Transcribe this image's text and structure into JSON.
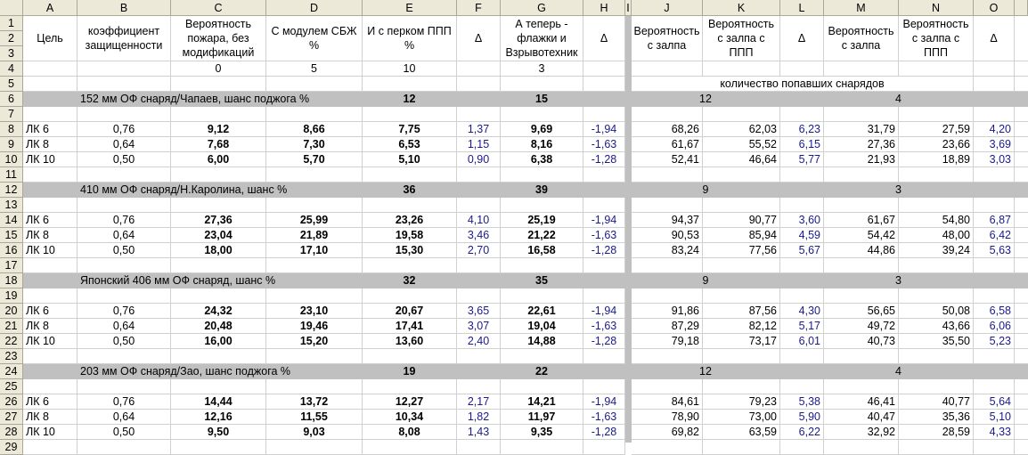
{
  "columns": [
    "A",
    "B",
    "C",
    "D",
    "E",
    "F",
    "G",
    "H",
    "I",
    "J",
    "K",
    "L",
    "M",
    "N",
    "O"
  ],
  "headers": {
    "A": "Цель",
    "B": "коэффициент защищенности",
    "C": "Вероятность пожара, без модификаций",
    "D": "С модулем СБЖ %",
    "E": "И с перком ППП %",
    "F": "Δ",
    "G": "А теперь - флажки и Взрывотехник",
    "H": "Δ",
    "J": "Вероятность с залпа",
    "K": "Вероятность с залпа с ППП",
    "L": "Δ",
    "M": "Вероятность с залпа",
    "N": "Вероятность с залпа с ППП",
    "O": "Δ"
  },
  "row4": {
    "C": "0",
    "D": "5",
    "E": "10",
    "G": "3"
  },
  "row5": {
    "label": "количество попавших снарядов"
  },
  "colors": {
    "group_band": "#c0c0c0",
    "delta_text": "#1a1a8c",
    "header_bg": "#ece9d8"
  },
  "groups": [
    {
      "title": "152 мм ОФ снаряд/Чапаев, шанс поджога %",
      "e": "12",
      "g": "15",
      "jk": "12",
      "mn": "4",
      "rows": [
        {
          "A": "ЛК 6",
          "B": "0,76",
          "C": "9,12",
          "D": "8,66",
          "E": "7,75",
          "F": "1,37",
          "G": "9,69",
          "H": "-1,94",
          "J": "68,26",
          "K": "62,03",
          "L": "6,23",
          "M": "31,79",
          "N": "27,59",
          "O": "4,20"
        },
        {
          "A": "ЛК 8",
          "B": "0,64",
          "C": "7,68",
          "D": "7,30",
          "E": "6,53",
          "F": "1,15",
          "G": "8,16",
          "H": "-1,63",
          "J": "61,67",
          "K": "55,52",
          "L": "6,15",
          "M": "27,36",
          "N": "23,66",
          "O": "3,69"
        },
        {
          "A": "ЛК 10",
          "B": "0,50",
          "C": "6,00",
          "D": "5,70",
          "E": "5,10",
          "F": "0,90",
          "G": "6,38",
          "H": "-1,28",
          "J": "52,41",
          "K": "46,64",
          "L": "5,77",
          "M": "21,93",
          "N": "18,89",
          "O": "3,03"
        }
      ]
    },
    {
      "title": "410 мм ОФ снаряд/Н.Каролина, шанс %",
      "e": "36",
      "g": "39",
      "jk": "9",
      "mn": "3",
      "rows": [
        {
          "A": "ЛК 6",
          "B": "0,76",
          "C": "27,36",
          "D": "25,99",
          "E": "23,26",
          "F": "4,10",
          "G": "25,19",
          "H": "-1,94",
          "J": "94,37",
          "K": "90,77",
          "L": "3,60",
          "M": "61,67",
          "N": "54,80",
          "O": "6,87"
        },
        {
          "A": "ЛК 8",
          "B": "0,64",
          "C": "23,04",
          "D": "21,89",
          "E": "19,58",
          "F": "3,46",
          "G": "21,22",
          "H": "-1,63",
          "J": "90,53",
          "K": "85,94",
          "L": "4,59",
          "M": "54,42",
          "N": "48,00",
          "O": "6,42"
        },
        {
          "A": "ЛК 10",
          "B": "0,50",
          "C": "18,00",
          "D": "17,10",
          "E": "15,30",
          "F": "2,70",
          "G": "16,58",
          "H": "-1,28",
          "J": "83,24",
          "K": "77,56",
          "L": "5,67",
          "M": "44,86",
          "N": "39,24",
          "O": "5,63"
        }
      ]
    },
    {
      "title": "Японский 406 мм ОФ снаряд, шанс %",
      "e": "32",
      "g": "35",
      "jk": "9",
      "mn": "3",
      "rows": [
        {
          "A": "ЛК 6",
          "B": "0,76",
          "C": "24,32",
          "D": "23,10",
          "E": "20,67",
          "F": "3,65",
          "G": "22,61",
          "H": "-1,94",
          "J": "91,86",
          "K": "87,56",
          "L": "4,30",
          "M": "56,65",
          "N": "50,08",
          "O": "6,58"
        },
        {
          "A": "ЛК 8",
          "B": "0,64",
          "C": "20,48",
          "D": "19,46",
          "E": "17,41",
          "F": "3,07",
          "G": "19,04",
          "H": "-1,63",
          "J": "87,29",
          "K": "82,12",
          "L": "5,17",
          "M": "49,72",
          "N": "43,66",
          "O": "6,06"
        },
        {
          "A": "ЛК 10",
          "B": "0,50",
          "C": "16,00",
          "D": "15,20",
          "E": "13,60",
          "F": "2,40",
          "G": "14,88",
          "H": "-1,28",
          "J": "79,18",
          "K": "73,17",
          "L": "6,01",
          "M": "40,73",
          "N": "35,50",
          "O": "5,23"
        }
      ]
    },
    {
      "title": "203 мм ОФ снаряд/Зао, шанс поджога %",
      "e": "19",
      "g": "22",
      "jk": "12",
      "mn": "4",
      "rows": [
        {
          "A": "ЛК 6",
          "B": "0,76",
          "C": "14,44",
          "D": "13,72",
          "E": "12,27",
          "F": "2,17",
          "G": "14,21",
          "H": "-1,94",
          "J": "84,61",
          "K": "79,23",
          "L": "5,38",
          "M": "46,41",
          "N": "40,77",
          "O": "5,64"
        },
        {
          "A": "ЛК 8",
          "B": "0,64",
          "C": "12,16",
          "D": "11,55",
          "E": "10,34",
          "F": "1,82",
          "G": "11,97",
          "H": "-1,63",
          "J": "78,90",
          "K": "73,00",
          "L": "5,90",
          "M": "40,47",
          "N": "35,36",
          "O": "5,10"
        },
        {
          "A": "ЛК 10",
          "B": "0,50",
          "C": "9,50",
          "D": "9,03",
          "E": "8,08",
          "F": "1,43",
          "G": "9,35",
          "H": "-1,28",
          "J": "69,82",
          "K": "63,59",
          "L": "6,22",
          "M": "32,92",
          "N": "28,59",
          "O": "4,33"
        }
      ]
    }
  ]
}
